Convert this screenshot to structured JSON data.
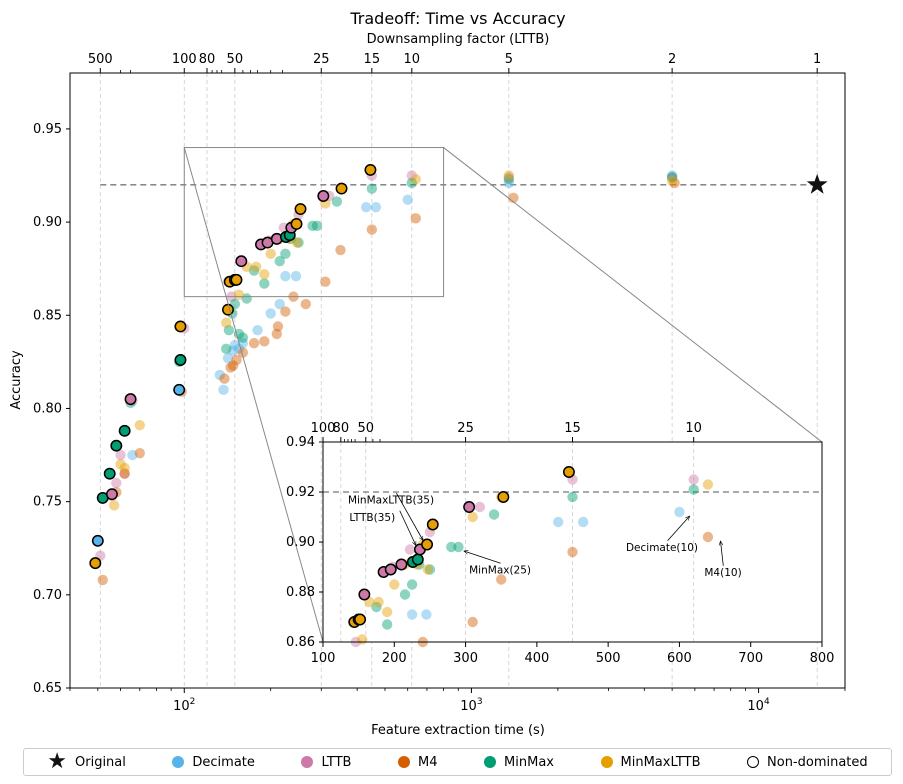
{
  "chart_data": {
    "type": "scatter",
    "title": "Tradeoff: Time vs Accuracy",
    "xlabel": "Feature extraction time (s)",
    "ylabel": "Accuracy",
    "secondary_xlabel": "Downsampling factor (LTTB)",
    "xscale": "log",
    "xlim": [
      40,
      20000
    ],
    "ylim": [
      0.65,
      0.98
    ],
    "yticks": [
      "0.65",
      "0.70",
      "0.75",
      "0.80",
      "0.85",
      "0.90",
      "0.95"
    ],
    "xticks": [
      "10^2",
      "10^3",
      "10^4"
    ],
    "top_ticks": [
      {
        "label": "500",
        "time": 51
      },
      {
        "label": "100",
        "time": 100
      },
      {
        "label": "80",
        "time": 120
      },
      {
        "label": "50",
        "time": 150
      },
      {
        "label": "25",
        "time": 300
      },
      {
        "label": "15",
        "time": 450
      },
      {
        "label": "10",
        "time": 620
      },
      {
        "label": "5",
        "time": 1350
      },
      {
        "label": "2",
        "time": 5000
      },
      {
        "label": "1",
        "time": 16000
      }
    ],
    "original": {
      "name": "Original",
      "time": 16000,
      "accuracy": 0.92
    },
    "reference_accuracy": 0.92,
    "series": [
      {
        "name": "Decimate",
        "color": "#56b4e9",
        "points": [
          [
            50,
            0.729
          ],
          [
            66,
            0.775
          ],
          [
            96,
            0.81
          ],
          [
            133,
            0.818
          ],
          [
            137,
            0.81
          ],
          [
            142,
            0.827
          ],
          [
            148,
            0.831
          ],
          [
            150,
            0.834
          ],
          [
            155,
            0.832
          ],
          [
            160,
            0.835
          ],
          [
            180,
            0.842
          ],
          [
            200,
            0.851
          ],
          [
            215,
            0.856
          ],
          [
            225,
            0.871
          ],
          [
            245,
            0.871
          ],
          [
            430,
            0.908
          ],
          [
            465,
            0.908
          ],
          [
            600,
            0.912
          ],
          [
            1350,
            0.921
          ],
          [
            5000,
            0.925
          ]
        ]
      },
      {
        "name": "LTTB",
        "color": "#cc79a7",
        "points": [
          [
            51,
            0.721
          ],
          [
            56,
            0.753
          ],
          [
            58,
            0.76
          ],
          [
            60,
            0.775
          ],
          [
            62,
            0.765
          ],
          [
            66,
            0.804
          ],
          [
            100,
            0.843
          ],
          [
            142,
            0.868
          ],
          [
            146,
            0.86
          ],
          [
            158,
            0.879
          ],
          [
            185,
            0.888
          ],
          [
            198,
            0.89
          ],
          [
            210,
            0.891
          ],
          [
            222,
            0.897
          ],
          [
            250,
            0.904
          ],
          [
            320,
            0.914
          ],
          [
            450,
            0.925
          ],
          [
            620,
            0.925
          ],
          [
            1350,
            0.924
          ],
          [
            5000,
            0.924
          ]
        ]
      },
      {
        "name": "M4",
        "color": "#d55e00",
        "points": [
          [
            52,
            0.708
          ],
          [
            58,
            0.755
          ],
          [
            62,
            0.765
          ],
          [
            70,
            0.776
          ],
          [
            98,
            0.809
          ],
          [
            138,
            0.816
          ],
          [
            145,
            0.822
          ],
          [
            148,
            0.823
          ],
          [
            152,
            0.826
          ],
          [
            160,
            0.83
          ],
          [
            175,
            0.835
          ],
          [
            190,
            0.836
          ],
          [
            210,
            0.84
          ],
          [
            212,
            0.844
          ],
          [
            225,
            0.852
          ],
          [
            240,
            0.86
          ],
          [
            265,
            0.856
          ],
          [
            310,
            0.868
          ],
          [
            350,
            0.885
          ],
          [
            450,
            0.896
          ],
          [
            640,
            0.902
          ],
          [
            1400,
            0.913
          ],
          [
            5100,
            0.921
          ]
        ]
      },
      {
        "name": "MinMax",
        "color": "#009e73",
        "points": [
          [
            52,
            0.752
          ],
          [
            55,
            0.765
          ],
          [
            58,
            0.78
          ],
          [
            62,
            0.788
          ],
          [
            65,
            0.803
          ],
          [
            96,
            0.825
          ],
          [
            140,
            0.832
          ],
          [
            143,
            0.842
          ],
          [
            147,
            0.851
          ],
          [
            150,
            0.856
          ],
          [
            155,
            0.84
          ],
          [
            160,
            0.838
          ],
          [
            165,
            0.859
          ],
          [
            175,
            0.874
          ],
          [
            190,
            0.867
          ],
          [
            215,
            0.879
          ],
          [
            225,
            0.883
          ],
          [
            235,
            0.891
          ],
          [
            250,
            0.889
          ],
          [
            280,
            0.898
          ],
          [
            290,
            0.898
          ],
          [
            340,
            0.911
          ],
          [
            450,
            0.918
          ],
          [
            620,
            0.921
          ],
          [
            1350,
            0.923
          ],
          [
            5000,
            0.924
          ]
        ]
      },
      {
        "name": "MinMaxLTTB",
        "color": "#e69f00",
        "points": [
          [
            49,
            0.717
          ],
          [
            57,
            0.748
          ],
          [
            60,
            0.77
          ],
          [
            62,
            0.768
          ],
          [
            70,
            0.791
          ],
          [
            96,
            0.844
          ],
          [
            140,
            0.846
          ],
          [
            142,
            0.853
          ],
          [
            145,
            0.868
          ],
          [
            150,
            0.869
          ],
          [
            155,
            0.861
          ],
          [
            165,
            0.876
          ],
          [
            178,
            0.876
          ],
          [
            190,
            0.872
          ],
          [
            200,
            0.883
          ],
          [
            215,
            0.891
          ],
          [
            232,
            0.891
          ],
          [
            240,
            0.899
          ],
          [
            247,
            0.889
          ],
          [
            255,
            0.907
          ],
          [
            310,
            0.91
          ],
          [
            350,
            0.918
          ],
          [
            445,
            0.928
          ],
          [
            640,
            0.923
          ],
          [
            1350,
            0.925
          ],
          [
            5000,
            0.922
          ]
        ]
      }
    ],
    "pareto": [
      {
        "series": "Decimate",
        "time": 50,
        "accuracy": 0.729
      },
      {
        "series": "MinMaxLTTB",
        "time": 49,
        "accuracy": 0.717
      },
      {
        "series": "MinMax",
        "time": 52,
        "accuracy": 0.752
      },
      {
        "series": "LTTB",
        "time": 56,
        "accuracy": 0.754
      },
      {
        "series": "MinMax",
        "time": 55,
        "accuracy": 0.765
      },
      {
        "series": "MinMax",
        "time": 58,
        "accuracy": 0.78
      },
      {
        "series": "MinMax",
        "time": 62,
        "accuracy": 0.788
      },
      {
        "series": "LTTB",
        "time": 65,
        "accuracy": 0.805
      },
      {
        "series": "Decimate",
        "time": 96,
        "accuracy": 0.81
      },
      {
        "series": "MinMax",
        "time": 97,
        "accuracy": 0.826
      },
      {
        "series": "MinMaxLTTB",
        "time": 97,
        "accuracy": 0.844
      },
      {
        "series": "MinMaxLTTB",
        "time": 142,
        "accuracy": 0.853
      },
      {
        "series": "MinMaxLTTB",
        "time": 144,
        "accuracy": 0.868
      },
      {
        "series": "LTTB",
        "time": 150,
        "accuracy": 0.869
      },
      {
        "series": "MinMaxLTTB",
        "time": 152,
        "accuracy": 0.869
      },
      {
        "series": "LTTB",
        "time": 158,
        "accuracy": 0.879
      },
      {
        "series": "LTTB",
        "time": 185,
        "accuracy": 0.888
      },
      {
        "series": "LTTB",
        "time": 195,
        "accuracy": 0.889
      },
      {
        "series": "LTTB",
        "time": 210,
        "accuracy": 0.891
      },
      {
        "series": "MinMax",
        "time": 226,
        "accuracy": 0.892
      },
      {
        "series": "MinMax",
        "time": 233,
        "accuracy": 0.893
      },
      {
        "series": "LTTB",
        "time": 236,
        "accuracy": 0.897
      },
      {
        "series": "MinMaxLTTB",
        "time": 246,
        "accuracy": 0.899
      },
      {
        "series": "MinMaxLTTB",
        "time": 254,
        "accuracy": 0.907
      },
      {
        "series": "LTTB",
        "time": 305,
        "accuracy": 0.914
      },
      {
        "series": "MinMaxLTTB",
        "time": 353,
        "accuracy": 0.918
      },
      {
        "series": "MinMaxLTTB",
        "time": 445,
        "accuracy": 0.928
      }
    ],
    "inset": {
      "xlim": [
        100,
        800
      ],
      "ylim": [
        0.86,
        0.94
      ],
      "xticks": [
        "100",
        "200",
        "300",
        "400",
        "500",
        "600",
        "700",
        "800"
      ],
      "yticks": [
        "0.86",
        "0.88",
        "0.90",
        "0.92",
        "0.94"
      ],
      "top_ticks": [
        {
          "label": "100",
          "time": 100
        },
        {
          "label": "80",
          "time": 125
        },
        {
          "label": "50",
          "time": 160
        },
        {
          "label": "25",
          "time": 300
        },
        {
          "label": "15",
          "time": 450
        },
        {
          "label": "10",
          "time": 620
        }
      ],
      "annotations": [
        {
          "text": "MinMaxLTTB(35)",
          "time": 246,
          "accuracy": 0.899,
          "text_time": 135,
          "text_accuracy": 0.9155
        },
        {
          "text": "LTTB(35)",
          "time": 236,
          "accuracy": 0.897,
          "text_time": 137,
          "text_accuracy": 0.9085
        },
        {
          "text": "MinMax(25)",
          "time": 292,
          "accuracy": 0.898,
          "text_time": 305,
          "text_accuracy": 0.8875
        },
        {
          "text": "Decimate(10)",
          "time": 620,
          "accuracy": 0.912,
          "text_time": 525,
          "text_accuracy": 0.8965
        },
        {
          "text": "M4(10)",
          "time": 652,
          "accuracy": 0.902,
          "text_time": 635,
          "text_accuracy": 0.8865
        }
      ]
    },
    "legend": {
      "position": "bottom",
      "items": [
        {
          "label": "Original",
          "marker": "star",
          "color": "#111111"
        },
        {
          "label": "Decimate",
          "marker": "circle",
          "color": "#56b4e9"
        },
        {
          "label": "LTTB",
          "marker": "circle",
          "color": "#cc79a7"
        },
        {
          "label": "M4",
          "marker": "circle",
          "color": "#d55e00"
        },
        {
          "label": "MinMax",
          "marker": "circle",
          "color": "#009e73"
        },
        {
          "label": "MinMaxLTTB",
          "marker": "circle",
          "color": "#e69f00"
        },
        {
          "label": "Non-dominated",
          "marker": "ring",
          "color": "#000000"
        }
      ]
    }
  }
}
